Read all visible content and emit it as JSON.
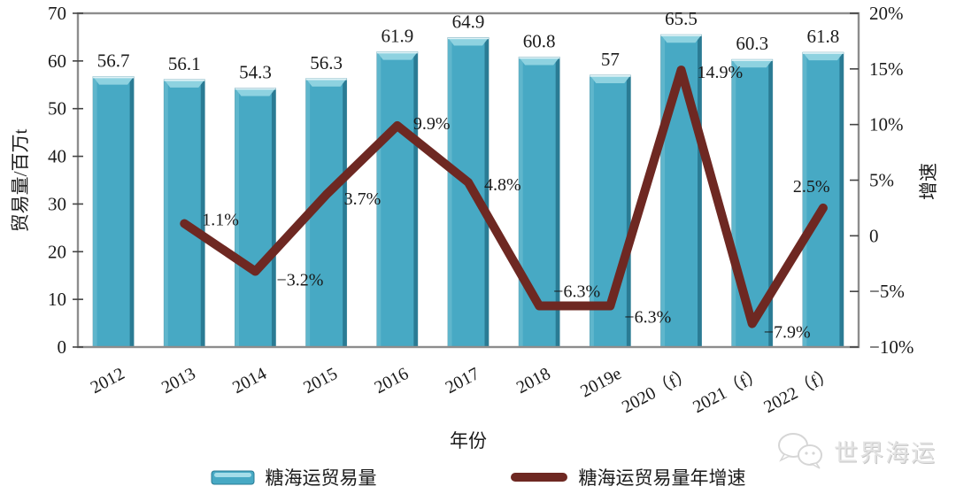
{
  "chart_data": {
    "type": "bar+line",
    "title": "",
    "xlabel": "年份",
    "grid": false,
    "legend_position": "bottom",
    "categories": [
      "2012",
      "2013",
      "2014",
      "2015",
      "2016",
      "2017",
      "2018",
      "2019e",
      "2020（f）",
      "2021（f）",
      "2022（f）"
    ],
    "series": [
      {
        "name": "糖海运贸易量",
        "type": "bar",
        "axis": "left",
        "values": [
          56.7,
          56.1,
          54.3,
          56.3,
          61.9,
          64.9,
          60.8,
          57,
          65.5,
          60.3,
          61.8
        ],
        "labels": [
          "56.7",
          "56.1",
          "54.3",
          "56.3",
          "61.9",
          "64.9",
          "60.8",
          "57",
          "65.5",
          "60.3",
          "61.8"
        ],
        "color": "#47a9c4"
      },
      {
        "name": "糖海运贸易量年增速",
        "type": "line",
        "axis": "right",
        "start_category_index": 1,
        "values": [
          1.1,
          -3.2,
          3.7,
          9.9,
          4.8,
          -6.3,
          -6.3,
          14.9,
          -7.9,
          2.5
        ],
        "labels": [
          "1.1%",
          "−3.2%",
          "3.7%",
          "9.9%",
          "4.8%",
          "−6.3%",
          "−6.3%",
          "14.9%",
          "−7.9%",
          "2.5%"
        ],
        "color": "#6e2822"
      }
    ],
    "left_axis": {
      "title": "贸易量/百万t",
      "min": 0,
      "max": 70,
      "step": 10,
      "tick_labels": [
        "0",
        "10",
        "20",
        "30",
        "40",
        "50",
        "60",
        "70"
      ]
    },
    "right_axis": {
      "title": "增速",
      "min": -10,
      "max": 20,
      "step": 5,
      "tick_labels": [
        "−10%",
        "−5%",
        "0",
        "5%",
        "10%",
        "15%",
        "20%"
      ]
    }
  },
  "legend": {
    "items": [
      {
        "label": "糖海运贸易量",
        "swatch": "bar"
      },
      {
        "label": "糖海运贸易量年增速",
        "swatch": "line"
      }
    ]
  },
  "watermark": {
    "text": "世界海运",
    "icon": "wechat-bubbles-icon"
  },
  "colors": {
    "bar_main": "#47a9c4",
    "bar_top_bevel": "#8ed2e0",
    "bar_top_highlight": "#dff2f6",
    "bar_left_edge": "#5fb6cc",
    "bar_right_edge": "#2a7b94",
    "line": "#6e2822",
    "frame": "#8d8d8d",
    "tick": "#444444",
    "watermark_gray": "#e3e3e3"
  }
}
